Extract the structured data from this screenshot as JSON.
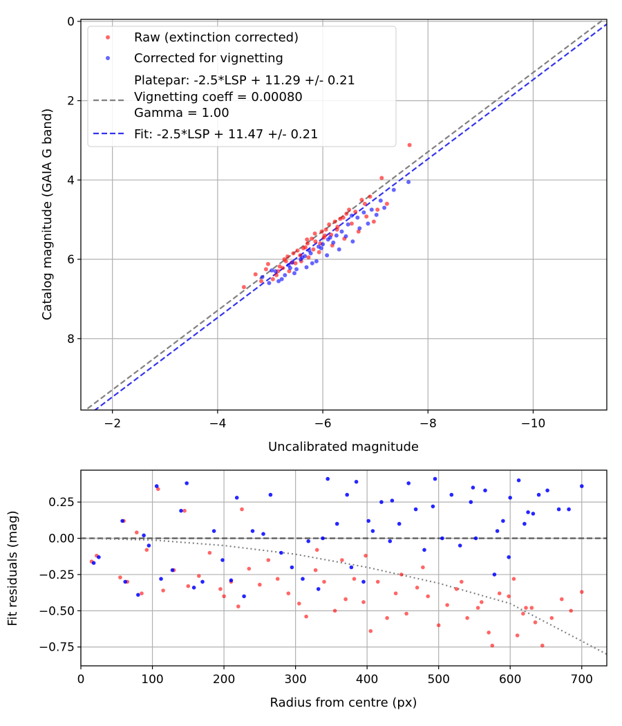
{
  "chart_data": [
    {
      "type": "scatter",
      "xlabel": "Uncalibrated magnitude",
      "ylabel": "Catalog magnitude (GAIA G band)",
      "xlim": [
        -1.4,
        -11.4
      ],
      "ylim": [
        9.8,
        -0.05
      ],
      "x_inverted": true,
      "y_inverted": true,
      "grid": true,
      "xticks": [
        -2,
        -4,
        -6,
        -8,
        -10
      ],
      "yticks": [
        0,
        2,
        4,
        6,
        8
      ],
      "xtick_labels": [
        "−2",
        "−4",
        "−6",
        "−8",
        "−10"
      ],
      "ytick_labels": [
        "0",
        "2",
        "4",
        "6",
        "8"
      ],
      "legend_position": "upper-left",
      "legend": [
        {
          "kind": "marker",
          "color": "#ff0000",
          "label_lines": [
            "Raw (extinction corrected)"
          ]
        },
        {
          "kind": "marker",
          "color": "#0000ff",
          "label_lines": [
            "Corrected for vignetting"
          ]
        },
        {
          "kind": "dashed-line",
          "color": "#808080",
          "label_lines": [
            "Platepar: -2.5*LSP + 11.29 +/- 0.21",
            "Vignetting coeff = 0.00080",
            "Gamma = 1.00"
          ]
        },
        {
          "kind": "dashed-line",
          "color": "#3333ee",
          "label_lines": [
            "Fit: -2.5*LSP + 11.47 +/- 0.21"
          ]
        }
      ],
      "lines": [
        {
          "name": "Platepar",
          "color": "#808080",
          "style": "dashed",
          "intercept": 11.29,
          "slope": 1
        },
        {
          "name": "Fit",
          "color": "#3333ee",
          "style": "dashed",
          "intercept": 11.47,
          "slope": 1
        }
      ],
      "series": [
        {
          "name": "Raw (extinction corrected)",
          "color": "#ff0000",
          "alpha": 0.6,
          "x": [
            -4.5,
            -4.72,
            -4.83,
            -4.96,
            -5.12,
            -5.27,
            -5.36,
            -5.44,
            -5.59,
            -5.67,
            -5.73,
            -5.86,
            -5.93,
            -6.04,
            -6.18,
            -6.27,
            -6.41,
            -6.55,
            -6.68,
            -6.83,
            -6.97,
            -7.04,
            -7.22,
            -7.65,
            -4.92,
            -5.18,
            -5.33,
            -5.52,
            -5.71,
            -5.85,
            -6.06,
            -6.23,
            -6.39,
            -6.62,
            -6.8,
            -5.05,
            -5.24,
            -5.41,
            -5.63,
            -5.79,
            -5.98,
            -6.12,
            -6.33,
            -6.5,
            -6.74,
            -5.57,
            -5.95,
            -6.28,
            -5.15,
            -5.48,
            -5.7,
            -6.02,
            -6.45,
            -6.9,
            -7.12,
            -5.3,
            -5.82,
            -6.16
          ],
          "y": [
            6.7,
            6.38,
            6.55,
            6.12,
            6.4,
            6.0,
            6.3,
            5.85,
            6.05,
            5.7,
            5.95,
            5.55,
            5.82,
            5.4,
            5.65,
            5.25,
            5.48,
            5.1,
            5.3,
            4.92,
            5.05,
            4.75,
            4.6,
            3.12,
            6.25,
            6.18,
            5.93,
            5.78,
            5.6,
            5.35,
            5.25,
            5.05,
            4.95,
            4.8,
            4.6,
            6.5,
            6.22,
            6.08,
            5.72,
            5.48,
            5.3,
            5.12,
            4.98,
            4.75,
            4.5,
            5.9,
            5.6,
            5.18,
            6.3,
            6.1,
            5.5,
            5.45,
            4.85,
            4.42,
            3.95,
            6.05,
            5.75,
            5.38
          ]
        },
        {
          "name": "Corrected for vignetting",
          "color": "#0000ff",
          "alpha": 0.6,
          "x": [
            -4.85,
            -4.98,
            -5.1,
            -5.22,
            -5.35,
            -5.46,
            -5.58,
            -5.69,
            -5.77,
            -5.88,
            -5.97,
            -6.08,
            -6.2,
            -6.31,
            -6.44,
            -6.57,
            -6.7,
            -6.86,
            -7.02,
            -7.17,
            -7.35,
            -7.63,
            -5.03,
            -5.28,
            -5.42,
            -5.61,
            -5.8,
            -5.92,
            -6.1,
            -6.26,
            -6.48,
            -6.66,
            -6.93,
            -7.1,
            -5.16,
            -5.5,
            -5.74,
            -6.0,
            -6.36,
            -6.78,
            -5.38,
            -5.66,
            -6.14,
            -6.55
          ],
          "y": [
            6.45,
            6.6,
            6.3,
            6.5,
            6.15,
            6.35,
            6.0,
            6.2,
            5.85,
            6.05,
            5.72,
            5.9,
            5.58,
            5.75,
            5.42,
            5.55,
            5.22,
            5.1,
            4.88,
            4.7,
            4.25,
            4.05,
            6.28,
            6.4,
            6.08,
            5.95,
            6.1,
            5.68,
            5.5,
            5.4,
            5.12,
            4.95,
            4.75,
            4.52,
            6.55,
            6.25,
            5.78,
            5.62,
            5.3,
            4.82,
            6.22,
            5.92,
            5.45,
            4.9
          ]
        }
      ]
    },
    {
      "type": "scatter",
      "xlabel": "Radius from centre (px)",
      "ylabel": "Fit residuals (mag)",
      "xlim": [
        0,
        735
      ],
      "ylim": [
        -0.88,
        0.47
      ],
      "grid": true,
      "xticks": [
        0,
        100,
        200,
        300,
        400,
        500,
        600,
        700
      ],
      "yticks": [
        0.25,
        0,
        -0.25,
        -0.5,
        -0.75
      ],
      "xtick_labels": [
        "0",
        "100",
        "200",
        "300",
        "400",
        "500",
        "600",
        "700"
      ],
      "ytick_labels": [
        "0.25",
        "0.00",
        "−0.25",
        "−0.50",
        "−0.75"
      ],
      "lines": [
        {
          "name": "Zero residual",
          "color": "#555555",
          "style": "dashed",
          "x": [
            0,
            735
          ],
          "y": [
            0,
            0
          ]
        },
        {
          "name": "Vignetting model",
          "color": "#808080",
          "style": "dotted",
          "x": [
            0,
            100,
            200,
            300,
            400,
            500,
            600,
            735
          ],
          "y": [
            0,
            -0.012,
            -0.05,
            -0.11,
            -0.2,
            -0.31,
            -0.45,
            -0.8
          ]
        }
      ],
      "series": [
        {
          "name": "Raw",
          "color": "#ff0000",
          "alpha": 0.6,
          "x": [
            15,
            22,
            55,
            60,
            65,
            78,
            85,
            92,
            108,
            115,
            130,
            145,
            150,
            165,
            180,
            195,
            200,
            210,
            220,
            235,
            250,
            262,
            275,
            290,
            305,
            315,
            328,
            340,
            355,
            370,
            382,
            395,
            405,
            415,
            428,
            440,
            455,
            470,
            485,
            500,
            512,
            525,
            540,
            555,
            570,
            585,
            598,
            610,
            622,
            635,
            645,
            658,
            672,
            685,
            700,
            225,
            330,
            365,
            398,
            448,
            478,
            532,
            560,
            575,
            605,
            618,
            630
          ],
          "y": [
            -0.16,
            -0.12,
            -0.27,
            0.12,
            -0.3,
            0.04,
            -0.38,
            -0.08,
            0.34,
            -0.36,
            -0.22,
            0.19,
            -0.33,
            -0.26,
            -0.1,
            -0.35,
            -0.4,
            -0.3,
            -0.47,
            -0.21,
            -0.32,
            -0.15,
            -0.28,
            -0.38,
            -0.45,
            -0.54,
            -0.22,
            -0.3,
            -0.5,
            -0.42,
            -0.28,
            -0.44,
            -0.64,
            -0.3,
            -0.55,
            -0.38,
            -0.52,
            -0.34,
            -0.4,
            -0.6,
            -0.46,
            -0.35,
            -0.55,
            -0.48,
            -0.65,
            -0.38,
            -0.4,
            -0.67,
            -0.48,
            -0.58,
            -0.74,
            -0.55,
            -0.42,
            -0.5,
            -0.37,
            0.2,
            -0.08,
            -0.15,
            -0.12,
            -0.25,
            -0.2,
            -0.3,
            -0.44,
            -0.74,
            -0.28,
            -0.52,
            -0.48
          ]
        },
        {
          "name": "Corrected",
          "color": "#0000ff",
          "alpha": 0.85,
          "x": [
            18,
            25,
            58,
            62,
            80,
            88,
            95,
            106,
            112,
            128,
            140,
            148,
            158,
            170,
            186,
            198,
            210,
            218,
            228,
            240,
            255,
            265,
            280,
            295,
            310,
            318,
            332,
            345,
            358,
            372,
            385,
            395,
            408,
            420,
            432,
            445,
            458,
            468,
            480,
            495,
            505,
            518,
            530,
            545,
            552,
            565,
            578,
            590,
            600,
            612,
            625,
            640,
            652,
            668,
            682,
            700,
            338,
            378,
            402,
            435,
            492,
            548,
            582,
            598,
            620,
            632
          ],
          "y": [
            -0.17,
            -0.13,
            0.12,
            -0.3,
            -0.39,
            0.02,
            -0.05,
            0.36,
            -0.28,
            -0.22,
            0.19,
            0.38,
            -0.34,
            -0.3,
            0.05,
            -0.15,
            -0.29,
            0.28,
            -0.4,
            0.05,
            0.03,
            0.3,
            -0.1,
            -0.2,
            -0.28,
            -0.02,
            -0.35,
            0.41,
            0.1,
            0.3,
            0.39,
            -0.3,
            0.05,
            0.25,
            -0.02,
            0.1,
            0.38,
            0.2,
            -0.08,
            0.41,
            0.0,
            0.3,
            -0.05,
            0.25,
            0.0,
            0.33,
            -0.25,
            0.12,
            0.28,
            0.4,
            0.18,
            0.3,
            0.33,
            0.2,
            0.2,
            0.36,
            0.0,
            -0.2,
            0.12,
            0.26,
            0.22,
            0.35,
            0.05,
            -0.13,
            0.1,
            0.17
          ]
        }
      ]
    }
  ]
}
